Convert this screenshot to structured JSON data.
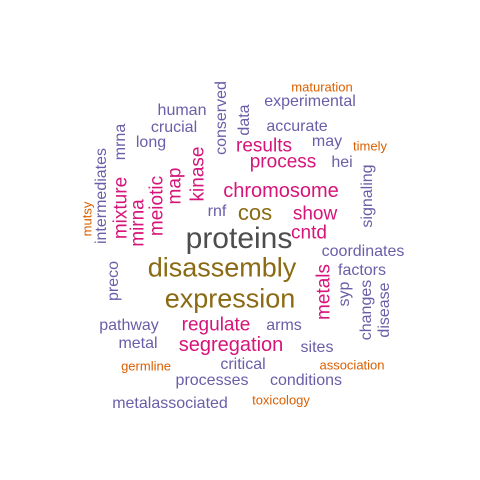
{
  "colors": {
    "gray": "#4d4d4d",
    "olive": "#8a6a12",
    "magenta": "#d6147a",
    "purple": "#6a5ea8",
    "orange": "#d95f02"
  },
  "words": [
    {
      "text": "proteins",
      "color": "gray"
    },
    {
      "text": "disassembly",
      "color": "olive"
    },
    {
      "text": "expression",
      "color": "olive"
    },
    {
      "text": "cos",
      "color": "olive"
    },
    {
      "text": "chromosome",
      "color": "magenta"
    },
    {
      "text": "segregation",
      "color": "magenta"
    },
    {
      "text": "regulate",
      "color": "magenta"
    },
    {
      "text": "process",
      "color": "magenta"
    },
    {
      "text": "results",
      "color": "magenta"
    },
    {
      "text": "show",
      "color": "magenta"
    },
    {
      "text": "cntd",
      "color": "magenta"
    },
    {
      "text": "kinase",
      "color": "magenta"
    },
    {
      "text": "map",
      "color": "magenta"
    },
    {
      "text": "meiotic",
      "color": "magenta"
    },
    {
      "text": "mirna",
      "color": "magenta"
    },
    {
      "text": "mixture",
      "color": "magenta"
    },
    {
      "text": "metals",
      "color": "magenta"
    },
    {
      "text": "human",
      "color": "purple"
    },
    {
      "text": "experimental",
      "color": "purple"
    },
    {
      "text": "crucial",
      "color": "purple"
    },
    {
      "text": "accurate",
      "color": "purple"
    },
    {
      "text": "long",
      "color": "purple"
    },
    {
      "text": "may",
      "color": "purple"
    },
    {
      "text": "hei",
      "color": "purple"
    },
    {
      "text": "rnf",
      "color": "purple"
    },
    {
      "text": "coordinates",
      "color": "purple"
    },
    {
      "text": "factors",
      "color": "purple"
    },
    {
      "text": "syp",
      "color": "purple"
    },
    {
      "text": "pathway",
      "color": "purple"
    },
    {
      "text": "arms",
      "color": "purple"
    },
    {
      "text": "metal",
      "color": "purple"
    },
    {
      "text": "sites",
      "color": "purple"
    },
    {
      "text": "critical",
      "color": "purple"
    },
    {
      "text": "processes",
      "color": "purple"
    },
    {
      "text": "conditions",
      "color": "purple"
    },
    {
      "text": "metalassociated",
      "color": "purple"
    },
    {
      "text": "conserved",
      "color": "purple"
    },
    {
      "text": "data",
      "color": "purple"
    },
    {
      "text": "intermediates",
      "color": "purple"
    },
    {
      "text": "mrna",
      "color": "purple"
    },
    {
      "text": "preco",
      "color": "purple"
    },
    {
      "text": "signaling",
      "color": "purple"
    },
    {
      "text": "changes",
      "color": "purple"
    },
    {
      "text": "disease",
      "color": "purple"
    },
    {
      "text": "maturation",
      "color": "orange"
    },
    {
      "text": "timely",
      "color": "orange"
    },
    {
      "text": "mutsy",
      "color": "orange"
    },
    {
      "text": "germline",
      "color": "orange"
    },
    {
      "text": "association",
      "color": "orange"
    },
    {
      "text": "toxicology",
      "color": "orange"
    }
  ]
}
